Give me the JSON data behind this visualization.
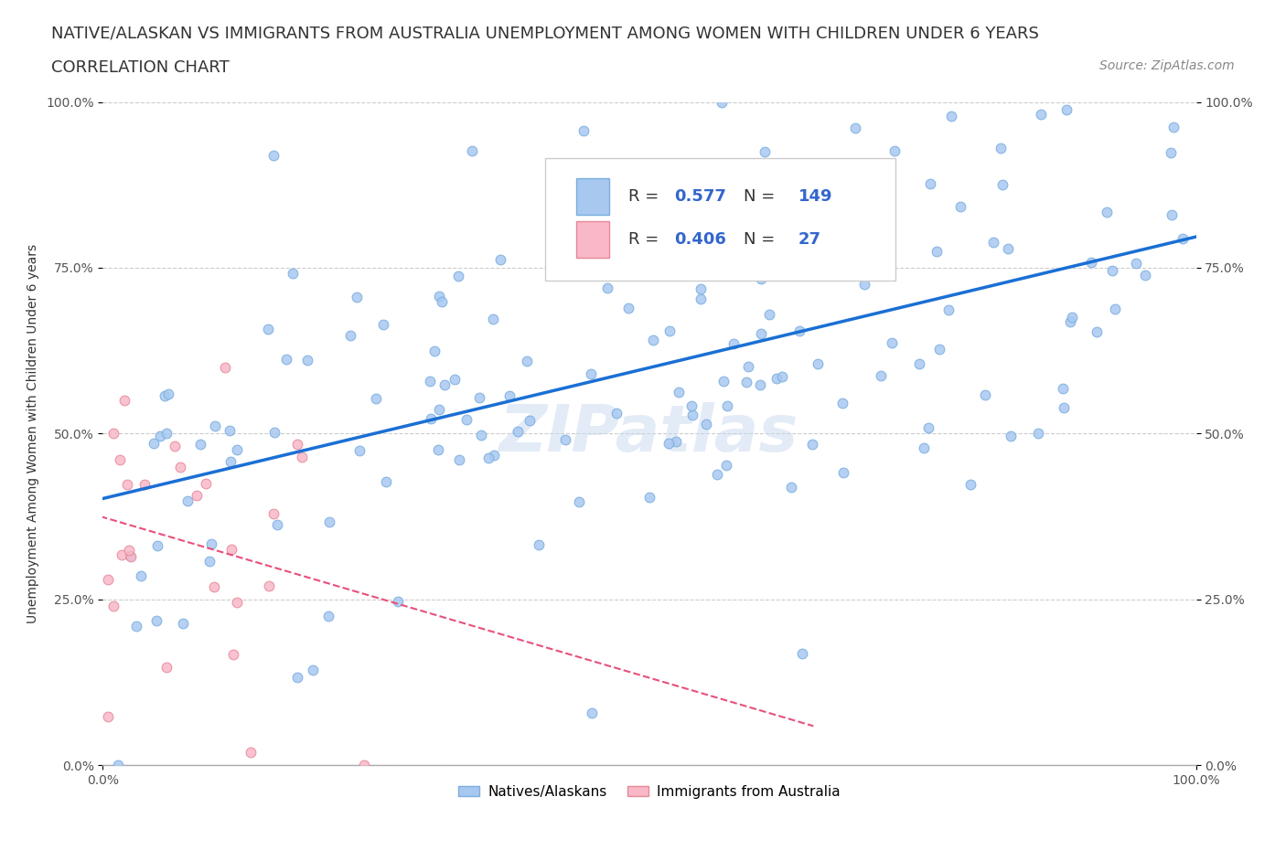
{
  "title_line1": "NATIVE/ALASKAN VS IMMIGRANTS FROM AUSTRALIA UNEMPLOYMENT AMONG WOMEN WITH CHILDREN UNDER 6 YEARS",
  "title_line2": "CORRELATION CHART",
  "source_text": "Source: ZipAtlas.com",
  "ylabel": "Unemployment Among Women with Children Under 6 years",
  "xlim": [
    0,
    1
  ],
  "ylim": [
    0,
    1
  ],
  "xtick_labels": [
    "0.0%",
    "100.0%"
  ],
  "ytick_labels": [
    "0.0%",
    "25.0%",
    "50.0%",
    "75.0%",
    "100.0%"
  ],
  "ytick_positions": [
    0,
    0.25,
    0.5,
    0.75,
    1.0
  ],
  "watermark": "ZIPatlas",
  "native_R": 0.577,
  "native_N": 149,
  "immigrant_R": 0.406,
  "immigrant_N": 27,
  "native_color": "#a8c8f0",
  "native_edge_color": "#7aaee0",
  "immigrant_color": "#f8b8c8",
  "immigrant_edge_color": "#e88898",
  "trendline_native_color": "#1a6fd4",
  "trendline_immigrant_color": "#e8507a",
  "grid_color": "#cccccc",
  "background_color": "#ffffff",
  "title_fontsize": 13,
  "subtitle_fontsize": 13,
  "axis_label_fontsize": 10,
  "tick_fontsize": 10,
  "legend_fontsize": 13,
  "source_fontsize": 10
}
